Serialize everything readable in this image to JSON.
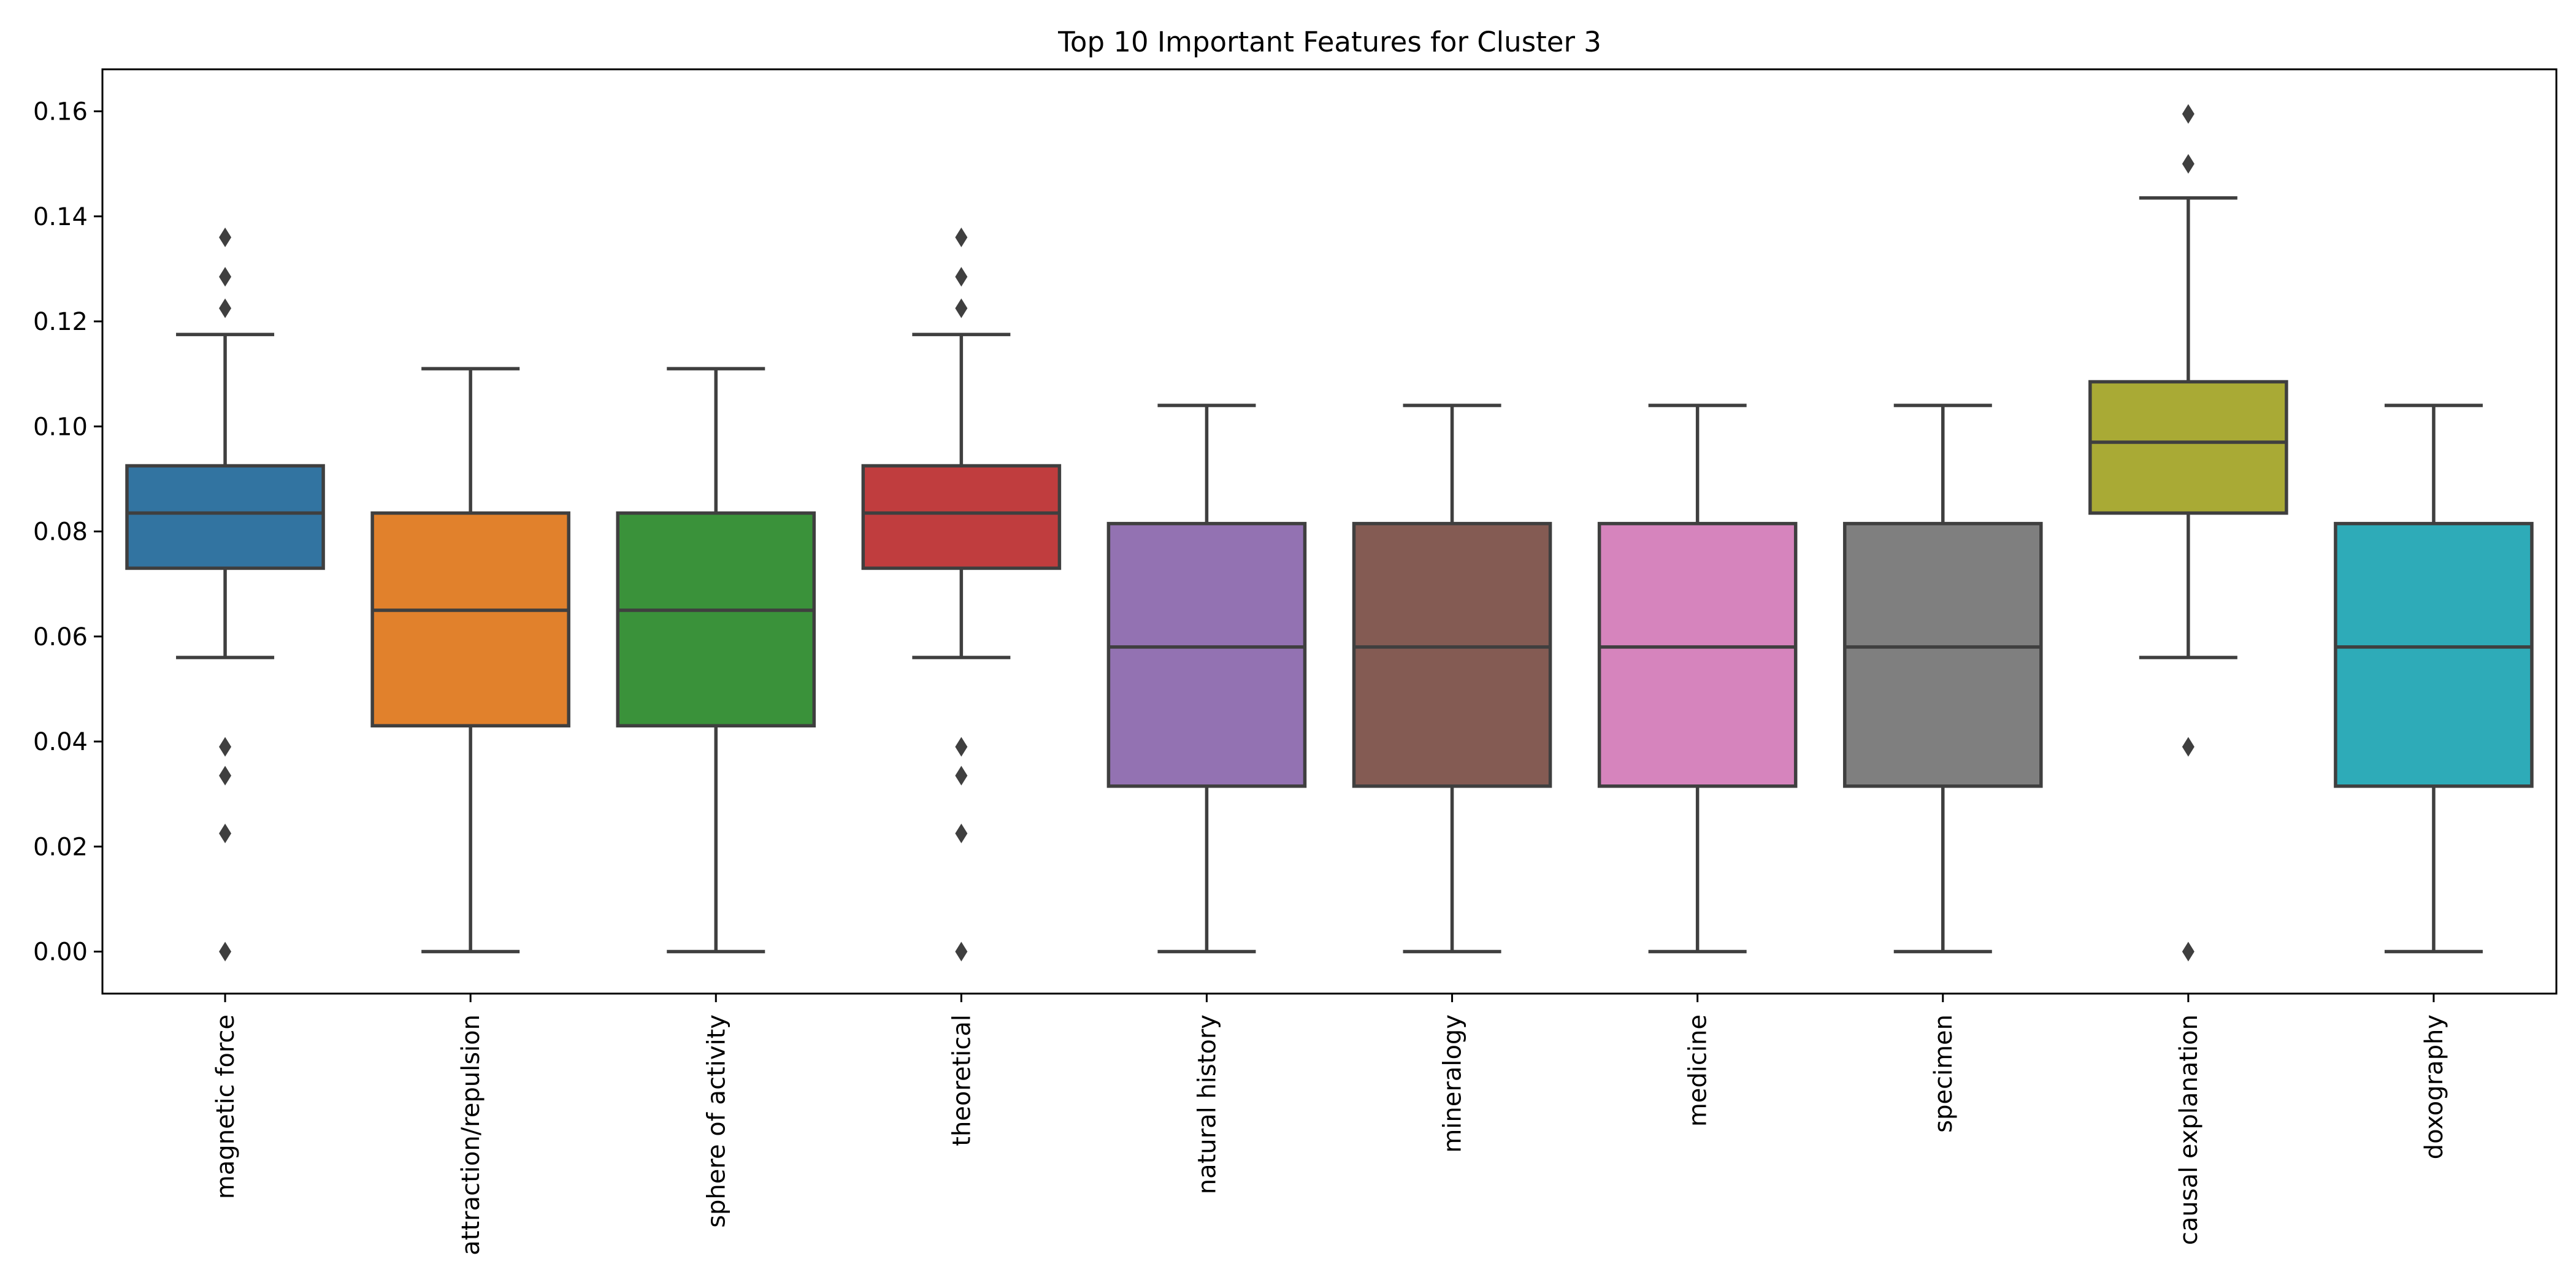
{
  "chart_data": {
    "type": "box",
    "title": "Top 10 Important Features for Cluster 3",
    "xlabel": "",
    "ylabel": "",
    "ylim": [
      -0.008,
      0.168
    ],
    "yticks": [
      0.0,
      0.02,
      0.04,
      0.06,
      0.08,
      0.1,
      0.12,
      0.14,
      0.16
    ],
    "ytick_labels": [
      "0.00",
      "0.02",
      "0.04",
      "0.06",
      "0.08",
      "0.10",
      "0.12",
      "0.14",
      "0.16"
    ],
    "grid": false,
    "categories": [
      "magnetic force",
      "attraction/repulsion",
      "sphere of activity",
      "theoretical",
      "natural history",
      "mineralogy",
      "medicine",
      "specimen",
      "causal explanation",
      "doxography"
    ],
    "boxes": [
      {
        "name": "magnetic force",
        "color": "#3274a1",
        "whislo": 0.056,
        "q1": 0.073,
        "median": 0.0835,
        "q3": 0.0925,
        "whishi": 0.1175,
        "fliers": [
          0.0,
          0.0225,
          0.0335,
          0.039,
          0.1225,
          0.1285,
          0.136
        ]
      },
      {
        "name": "attraction/repulsion",
        "color": "#e1812c",
        "whislo": 0.0,
        "q1": 0.043,
        "median": 0.065,
        "q3": 0.0835,
        "whishi": 0.111,
        "fliers": []
      },
      {
        "name": "sphere of activity",
        "color": "#3a923a",
        "whislo": 0.0,
        "q1": 0.043,
        "median": 0.065,
        "q3": 0.0835,
        "whishi": 0.111,
        "fliers": []
      },
      {
        "name": "theoretical",
        "color": "#c03d3e",
        "whislo": 0.056,
        "q1": 0.073,
        "median": 0.0835,
        "q3": 0.0925,
        "whishi": 0.1175,
        "fliers": [
          0.0,
          0.0225,
          0.0335,
          0.039,
          0.1225,
          0.1285,
          0.136
        ]
      },
      {
        "name": "natural history",
        "color": "#9372b2",
        "whislo": 0.0,
        "q1": 0.0315,
        "median": 0.058,
        "q3": 0.0815,
        "whishi": 0.104,
        "fliers": []
      },
      {
        "name": "mineralogy",
        "color": "#845b53",
        "whislo": 0.0,
        "q1": 0.0315,
        "median": 0.058,
        "q3": 0.0815,
        "whishi": 0.104,
        "fliers": []
      },
      {
        "name": "medicine",
        "color": "#d684bd",
        "whislo": 0.0,
        "q1": 0.0315,
        "median": 0.058,
        "q3": 0.0815,
        "whishi": 0.104,
        "fliers": []
      },
      {
        "name": "specimen",
        "color": "#7f7f7f",
        "whislo": 0.0,
        "q1": 0.0315,
        "median": 0.058,
        "q3": 0.0815,
        "whishi": 0.104,
        "fliers": []
      },
      {
        "name": "causal explanation",
        "color": "#a9aa35",
        "whislo": 0.056,
        "q1": 0.0835,
        "median": 0.097,
        "q3": 0.1085,
        "whishi": 0.1435,
        "fliers": [
          0.0,
          0.039,
          0.15,
          0.1595
        ]
      },
      {
        "name": "doxography",
        "color": "#2eabb8",
        "whislo": 0.0,
        "q1": 0.0315,
        "median": 0.058,
        "q3": 0.0815,
        "whishi": 0.104,
        "fliers": []
      }
    ]
  }
}
